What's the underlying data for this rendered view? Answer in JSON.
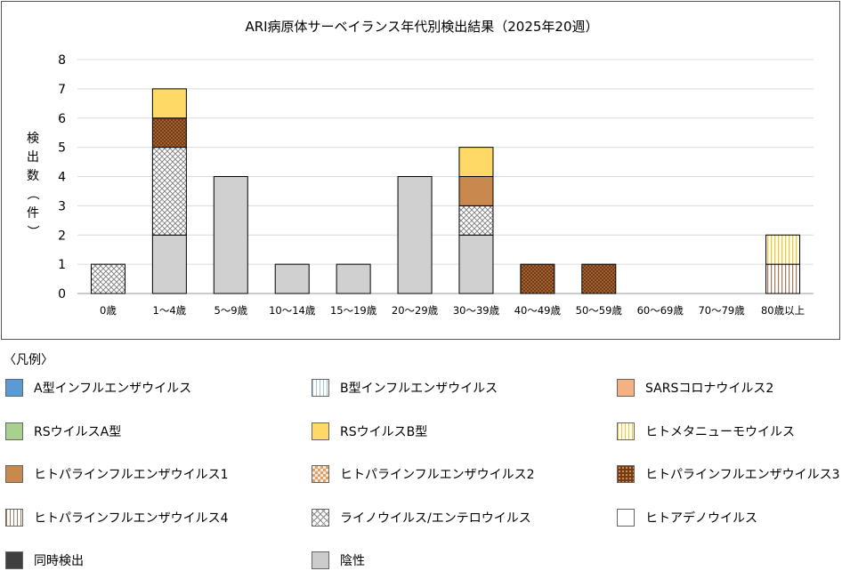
{
  "chart_data": {
    "type": "bar",
    "stacked": true,
    "title": "ARI病原体サーベイランス年代別検出結果（2025年20週）",
    "ylabel": "検出数（件）",
    "xlabel": "",
    "ylim": [
      0,
      8
    ],
    "yticks": [
      0,
      1,
      2,
      3,
      4,
      5,
      6,
      7,
      8
    ],
    "grid": true,
    "categories": [
      "0歳",
      "1～4歳",
      "5～9歳",
      "10～14歳",
      "15～19歳",
      "20～29歳",
      "30～39歳",
      "40～49歳",
      "50～59歳",
      "60～69歳",
      "70～79歳",
      "80歳以上"
    ],
    "series": [
      {
        "name": "A型インフルエンザウイルス",
        "values": [
          0,
          0,
          0,
          0,
          0,
          0,
          0,
          0,
          0,
          0,
          0,
          0
        ]
      },
      {
        "name": "B型インフルエンザウイルス",
        "values": [
          0,
          0,
          0,
          0,
          0,
          0,
          0,
          0,
          0,
          0,
          0,
          0
        ]
      },
      {
        "name": "SARSコロナウイルス2",
        "values": [
          0,
          0,
          0,
          0,
          0,
          0,
          0,
          0,
          0,
          0,
          0,
          0
        ]
      },
      {
        "name": "RSウイルスA型",
        "values": [
          0,
          0,
          0,
          0,
          0,
          0,
          0,
          0,
          0,
          0,
          0,
          0
        ]
      },
      {
        "name": "RSウイルスB型",
        "values": [
          0,
          1,
          0,
          0,
          0,
          0,
          1,
          0,
          0,
          0,
          0,
          0
        ]
      },
      {
        "name": "ヒトメタニューモウイルス",
        "values": [
          0,
          0,
          0,
          0,
          0,
          0,
          0,
          0,
          0,
          0,
          0,
          1
        ]
      },
      {
        "name": "ヒトパラインフルエンザウイルス1",
        "values": [
          0,
          0,
          0,
          0,
          0,
          0,
          1,
          0,
          0,
          0,
          0,
          0
        ]
      },
      {
        "name": "ヒトパラインフルエンザウイルス2",
        "values": [
          0,
          0,
          0,
          0,
          0,
          0,
          0,
          0,
          0,
          0,
          0,
          0
        ]
      },
      {
        "name": "ヒトパラインフルエンザウイルス3",
        "values": [
          0,
          1,
          0,
          0,
          0,
          0,
          0,
          1,
          1,
          0,
          0,
          0
        ]
      },
      {
        "name": "ヒトパラインフルエンザウイルス4",
        "values": [
          0,
          0,
          0,
          0,
          0,
          0,
          0,
          0,
          0,
          0,
          0,
          1
        ]
      },
      {
        "name": "ライノウイルス/エンテロウイルス",
        "values": [
          1,
          3,
          0,
          0,
          0,
          0,
          1,
          0,
          0,
          0,
          0,
          0
        ]
      },
      {
        "name": "ヒトアデノウイルス",
        "values": [
          0,
          0,
          0,
          0,
          0,
          0,
          0,
          0,
          0,
          0,
          0,
          0
        ]
      },
      {
        "name": "同時検出",
        "values": [
          0,
          0,
          0,
          0,
          0,
          0,
          0,
          0,
          0,
          0,
          0,
          0
        ]
      },
      {
        "name": "陰性",
        "values": [
          0,
          2,
          4,
          1,
          1,
          4,
          2,
          0,
          0,
          0,
          0,
          0
        ]
      }
    ],
    "stack_order": [
      "陰性",
      "ライノウイルス/エンテロウイルス",
      "ヒトパラインフルエンザウイルス4",
      "ヒトパラインフルエンザウイルス1",
      "ヒトパラインフルエンザウイルス3",
      "ヒトメタニューモウイルス",
      "RSウイルスB型",
      "A型インフルエンザウイルス",
      "B型インフルエンザウイルス",
      "SARSコロナウイルス2",
      "RSウイルスA型",
      "ヒトパラインフルエンザウイルス2",
      "ヒトアデノウイルス",
      "同時検出"
    ]
  },
  "legend": {
    "heading": "〈凡例〉",
    "items": [
      {
        "label": "A型インフルエンザウイルス",
        "icon": "solid-blue-swatch",
        "color": "#5b9bd5"
      },
      {
        "label": "B型インフルエンザウイルス",
        "icon": "blue-vertical-stripe-swatch",
        "color": "#bdd7ee"
      },
      {
        "label": "SARSコロナウイルス2",
        "icon": "solid-salmon-swatch",
        "color": "#f4b183"
      },
      {
        "label": "RSウイルスA型",
        "icon": "solid-green-swatch",
        "color": "#a9d18e"
      },
      {
        "label": "RSウイルスB型",
        "icon": "solid-yellow-swatch",
        "color": "#ffd966"
      },
      {
        "label": "ヒトメタニューモウイルス",
        "icon": "yellow-vertical-stripe-swatch",
        "color": "#fff2a8"
      },
      {
        "label": "ヒトパラインフルエンザウイルス1",
        "icon": "solid-brown-swatch",
        "color": "#c8884e"
      },
      {
        "label": "ヒトパラインフルエンザウイルス2",
        "icon": "brown-check-swatch",
        "color": "#d7a36a"
      },
      {
        "label": "ヒトパラインフルエンザウイルス3",
        "icon": "dark-brown-dotted-swatch",
        "color": "#833c0b"
      },
      {
        "label": "ヒトパラインフルエンザウイルス4",
        "icon": "brown-vertical-stripe-swatch",
        "color": "#a0785a"
      },
      {
        "label": "ライノウイルス/エンテロウイルス",
        "icon": "crosshatch-swatch",
        "color": "#8c8c8c"
      },
      {
        "label": "ヒトアデノウイルス",
        "icon": "white-swatch",
        "color": "#ffffff"
      },
      {
        "label": "同時検出",
        "icon": "solid-black-swatch",
        "color": "#404040"
      },
      {
        "label": "陰性",
        "icon": "solid-gray-swatch",
        "color": "#cccccc"
      }
    ]
  }
}
